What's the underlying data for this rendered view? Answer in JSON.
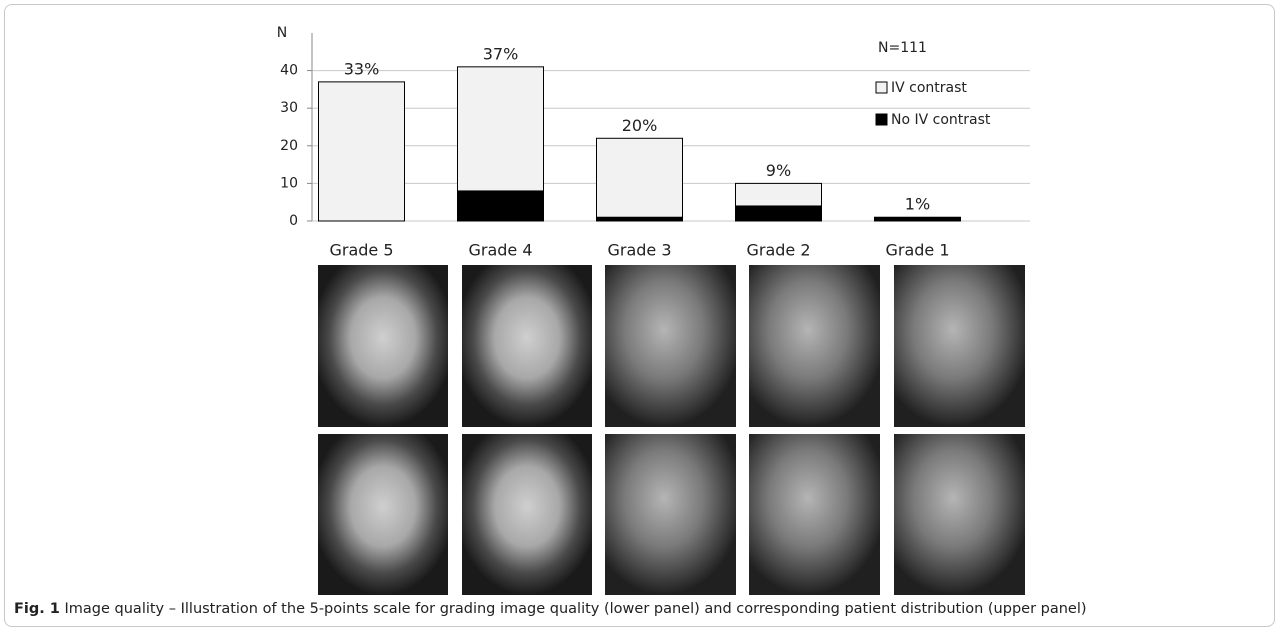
{
  "chart_data": {
    "type": "stacked-bar",
    "y_label": "N",
    "annotation": "N=111",
    "categories": [
      "Grade 5",
      "Grade 4",
      "Grade 3",
      "Grade 2",
      "Grade 1"
    ],
    "series": [
      {
        "name": "No IV  contrast",
        "color": "#000000",
        "values": [
          0,
          8,
          1,
          4,
          1
        ]
      },
      {
        "name": "IV contrast",
        "color": "#f2f2f2",
        "values": [
          37,
          33,
          21,
          6,
          0
        ]
      }
    ],
    "percentages": {
      "values": [
        33,
        37,
        20,
        9,
        1
      ],
      "value_labels": [
        "33%",
        "37%",
        "20%",
        "9%",
        "1%"
      ]
    },
    "ylim": [
      0,
      50
    ],
    "yticks": [
      0,
      10,
      20,
      30,
      40
    ],
    "grid": true,
    "legend": "top-right"
  },
  "caption": {
    "label": "Fig. 1",
    "text": "Image quality – Illustration of the 5-points scale for grading image quality (lower panel) and corresponding patient distribution (upper panel)"
  }
}
